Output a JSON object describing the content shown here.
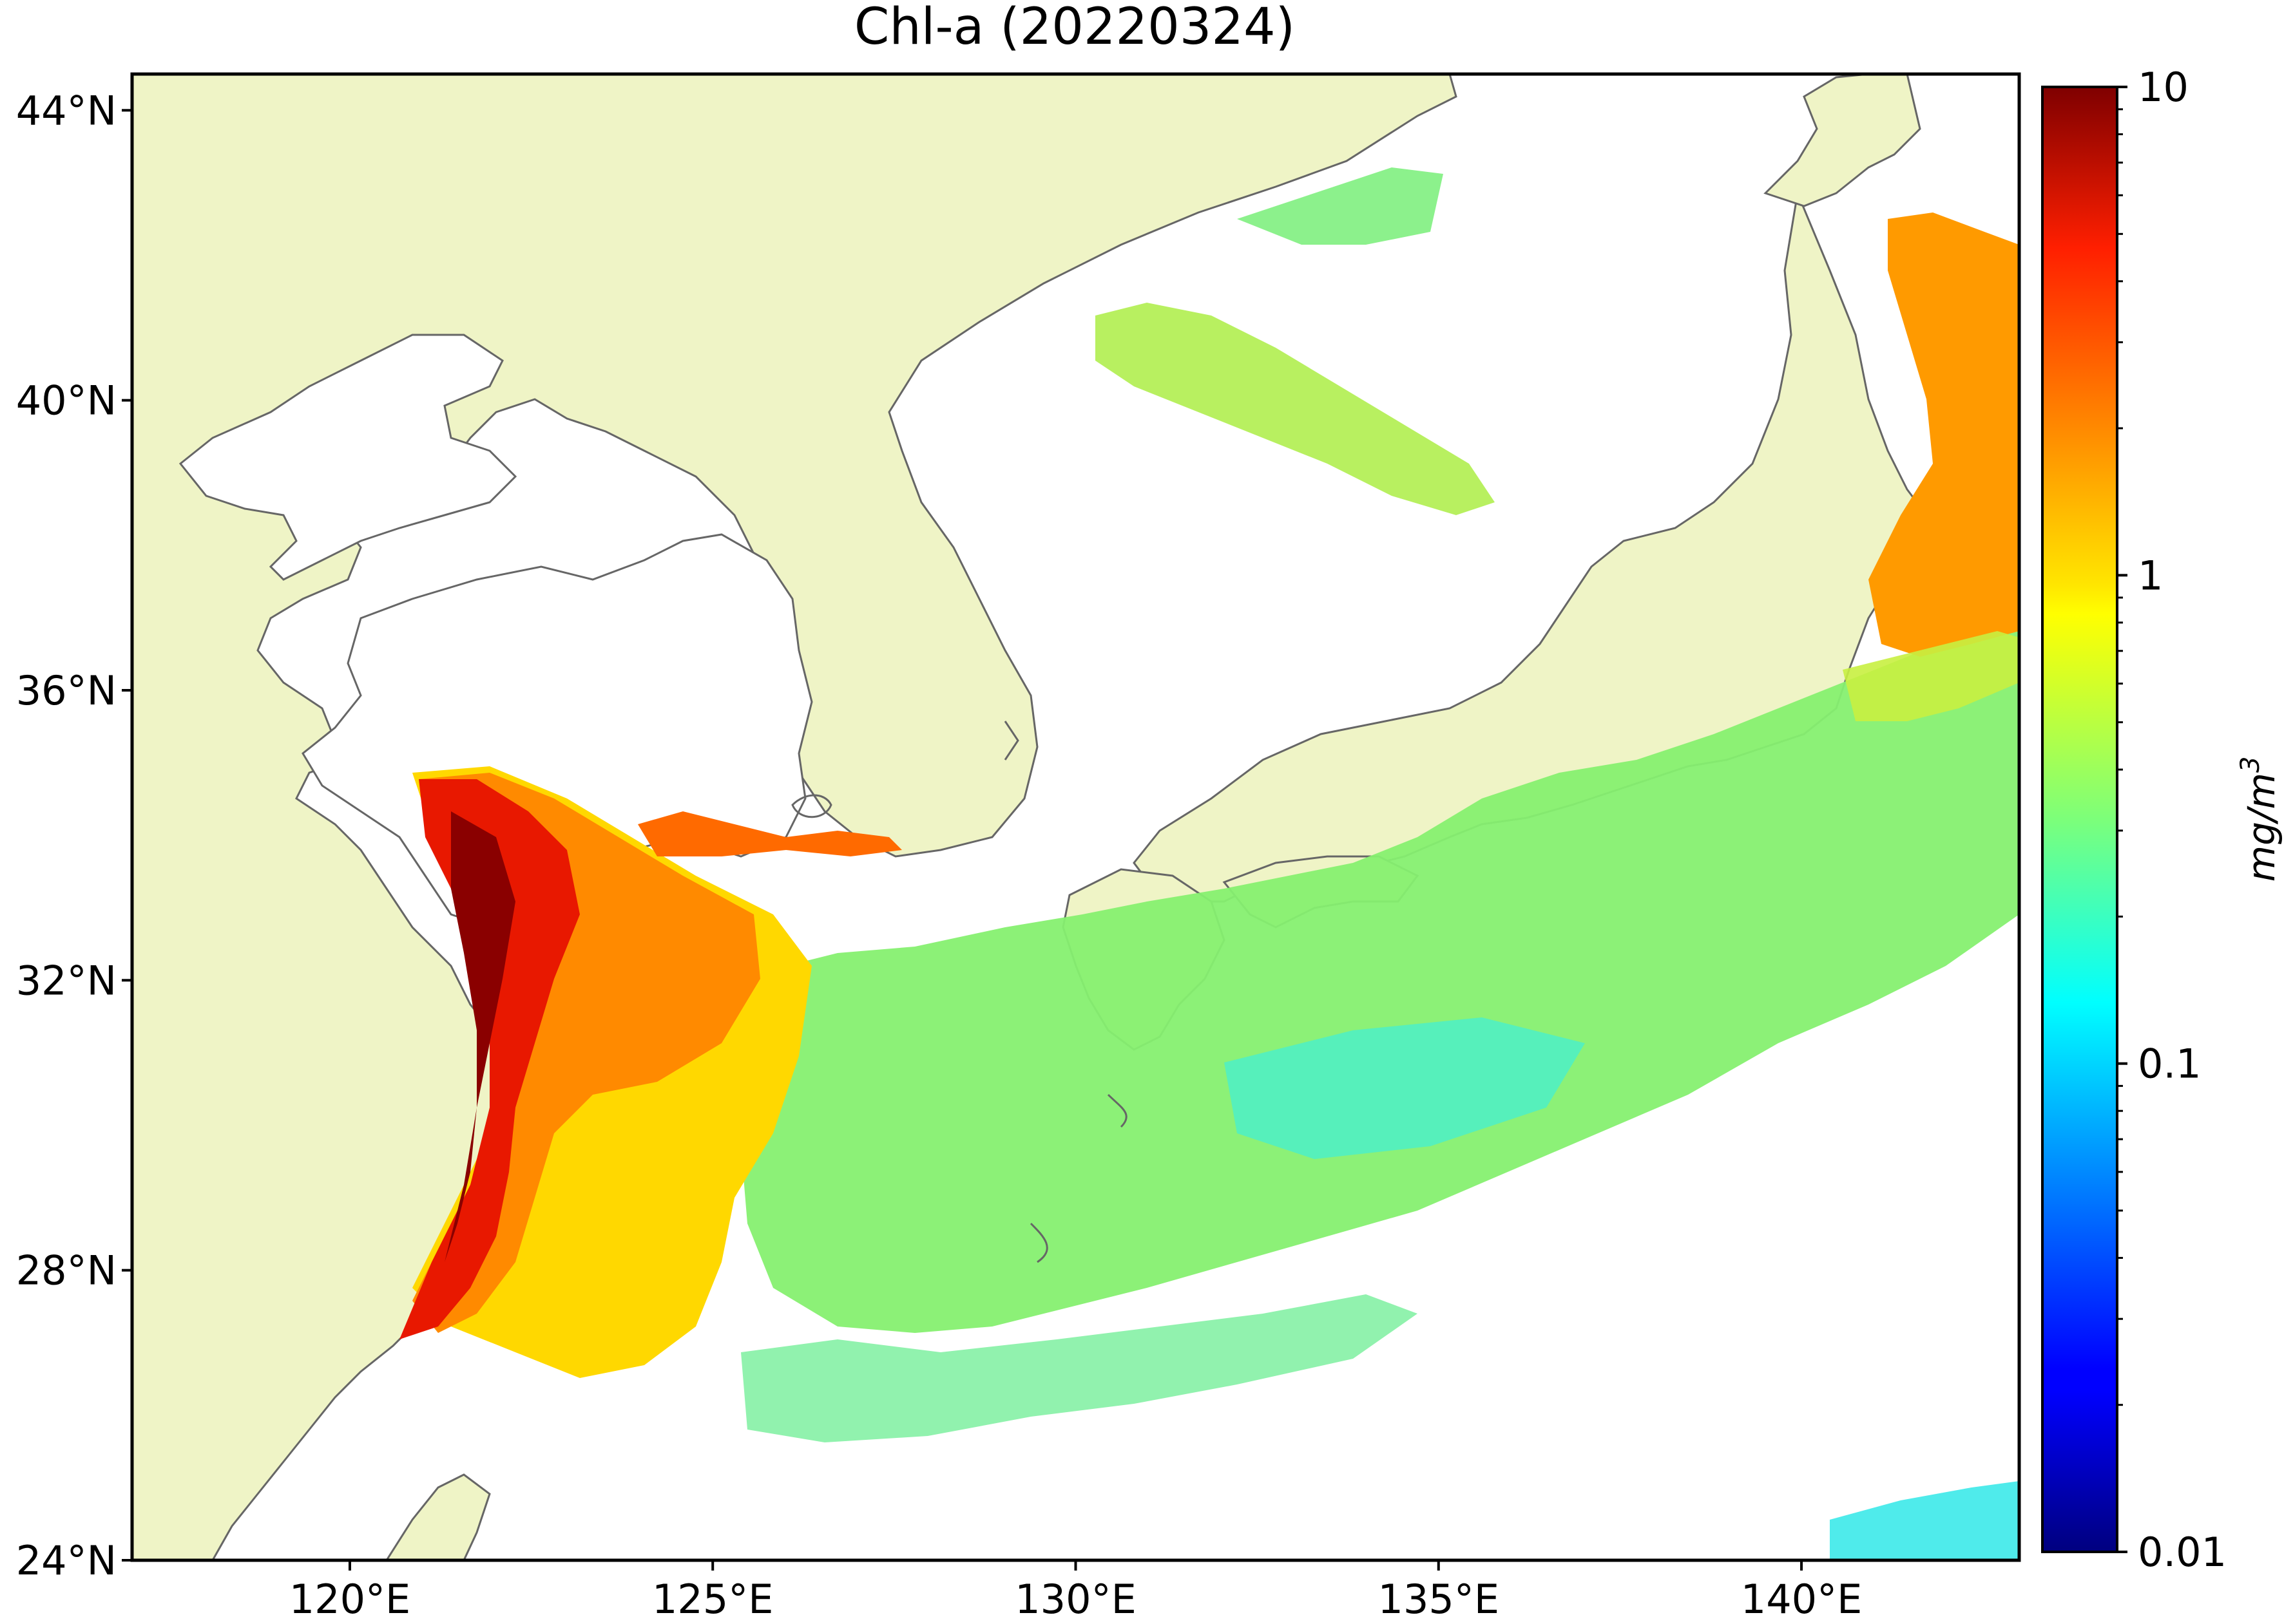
{
  "title": "Chl-a (20220324)",
  "map": {
    "lon_range": [
      117,
      143
    ],
    "lat_range": [
      24,
      44.5
    ],
    "land_color": "#eff4c6",
    "ocean_nodata_color": "#ffffff",
    "coast_color": "#666666",
    "x_ticks": [
      {
        "value": 120,
        "label": "120°E"
      },
      {
        "value": 125,
        "label": "125°E"
      },
      {
        "value": 130,
        "label": "130°E"
      },
      {
        "value": 135,
        "label": "135°E"
      },
      {
        "value": 140,
        "label": "140°E"
      }
    ],
    "y_ticks": [
      {
        "value": 44,
        "label": "44°N"
      },
      {
        "value": 40,
        "label": "40°N"
      },
      {
        "value": 36,
        "label": "36°N"
      },
      {
        "value": 32,
        "label": "32°N"
      },
      {
        "value": 28,
        "label": "28°N"
      },
      {
        "value": 24,
        "label": "24°N"
      }
    ]
  },
  "colorbar": {
    "label": "mg/m",
    "label_superscript": "3",
    "scale": "log",
    "range": [
      0.01,
      10
    ],
    "colormap": "jet",
    "ticks": [
      {
        "value": 10,
        "label": "10"
      },
      {
        "value": 1,
        "label": "1"
      },
      {
        "value": 0.1,
        "label": "0.1"
      },
      {
        "value": 0.01,
        "label": "0.01"
      }
    ]
  }
}
